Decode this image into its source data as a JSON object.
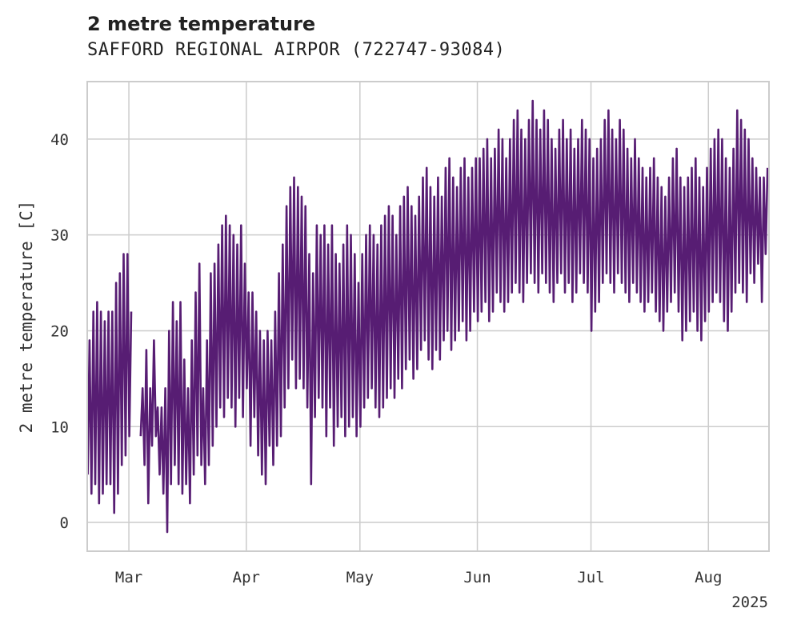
{
  "chart": {
    "title": "2 metre temperature",
    "subtitle": "SAFFORD REGIONAL AIRPOR (722747-93084)",
    "ylabel": "2 metre temperature [C]",
    "year_label": "2025"
  },
  "chart_data": {
    "type": "line",
    "title": "2 metre temperature",
    "subtitle": "SAFFORD REGIONAL AIRPOR (722747-93084)",
    "xlabel": "",
    "ylabel": "2 metre temperature [C]",
    "x_range": [
      "2025-02-18",
      "2025-08-16"
    ],
    "ylim": [
      -3,
      46
    ],
    "y_ticks": [
      0,
      10,
      20,
      30,
      40
    ],
    "x_ticks": [
      {
        "date": "2025-03-01",
        "label": "Mar"
      },
      {
        "date": "2025-04-01",
        "label": "Apr"
      },
      {
        "date": "2025-05-01",
        "label": "May"
      },
      {
        "date": "2025-06-01",
        "label": "Jun"
      },
      {
        "date": "2025-07-01",
        "label": "Jul"
      },
      {
        "date": "2025-08-01",
        "label": "Aug"
      }
    ],
    "grid": true,
    "series": [
      {
        "color": "#571d73",
        "daily_min_max": [
          [
            "2025-02-18",
            5,
            19
          ],
          [
            "2025-02-19",
            3,
            22
          ],
          [
            "2025-02-20",
            4,
            23
          ],
          [
            "2025-02-21",
            2,
            22
          ],
          [
            "2025-02-22",
            3,
            21
          ],
          [
            "2025-02-23",
            4,
            22
          ],
          [
            "2025-02-24",
            4,
            22
          ],
          [
            "2025-02-25",
            1,
            25
          ],
          [
            "2025-02-26",
            3,
            26
          ],
          [
            "2025-02-27",
            6,
            28
          ],
          [
            "2025-02-28",
            7,
            28
          ],
          [
            "2025-03-01",
            9,
            22
          ],
          [
            "2025-03-04",
            9,
            14
          ],
          [
            "2025-03-05",
            6,
            18
          ],
          [
            "2025-03-06",
            2,
            14
          ],
          [
            "2025-03-07",
            8,
            19
          ],
          [
            "2025-03-08",
            9,
            12
          ],
          [
            "2025-03-09",
            5,
            12
          ],
          [
            "2025-03-10",
            3,
            14
          ],
          [
            "2025-03-11",
            -1,
            20
          ],
          [
            "2025-03-12",
            4,
            23
          ],
          [
            "2025-03-13",
            6,
            21
          ],
          [
            "2025-03-14",
            4,
            23
          ],
          [
            "2025-03-15",
            3,
            17
          ],
          [
            "2025-03-16",
            4,
            14
          ],
          [
            "2025-03-17",
            2,
            19
          ],
          [
            "2025-03-18",
            5,
            24
          ],
          [
            "2025-03-19",
            7,
            27
          ],
          [
            "2025-03-20",
            6,
            14
          ],
          [
            "2025-03-21",
            4,
            19
          ],
          [
            "2025-03-22",
            6,
            26
          ],
          [
            "2025-03-23",
            8,
            27
          ],
          [
            "2025-03-24",
            10,
            29
          ],
          [
            "2025-03-25",
            12,
            31
          ],
          [
            "2025-03-26",
            11,
            32
          ],
          [
            "2025-03-27",
            13,
            31
          ],
          [
            "2025-03-28",
            12,
            30
          ],
          [
            "2025-03-29",
            10,
            29
          ],
          [
            "2025-03-30",
            13,
            31
          ],
          [
            "2025-03-31",
            11,
            27
          ],
          [
            "2025-04-01",
            14,
            24
          ],
          [
            "2025-04-02",
            8,
            24
          ],
          [
            "2025-04-03",
            11,
            22
          ],
          [
            "2025-04-04",
            7,
            20
          ],
          [
            "2025-04-05",
            5,
            19
          ],
          [
            "2025-04-06",
            4,
            20
          ],
          [
            "2025-04-07",
            8,
            19
          ],
          [
            "2025-04-08",
            6,
            22
          ],
          [
            "2025-04-09",
            8,
            26
          ],
          [
            "2025-04-10",
            9,
            29
          ],
          [
            "2025-04-11",
            12,
            33
          ],
          [
            "2025-04-12",
            14,
            35
          ],
          [
            "2025-04-13",
            17,
            36
          ],
          [
            "2025-04-14",
            14,
            35
          ],
          [
            "2025-04-15",
            15,
            34
          ],
          [
            "2025-04-16",
            14,
            33
          ],
          [
            "2025-04-17",
            12,
            28
          ],
          [
            "2025-04-18",
            4,
            26
          ],
          [
            "2025-04-19",
            11,
            31
          ],
          [
            "2025-04-20",
            13,
            30
          ],
          [
            "2025-04-21",
            12,
            31
          ],
          [
            "2025-04-22",
            9,
            29
          ],
          [
            "2025-04-23",
            12,
            31
          ],
          [
            "2025-04-24",
            8,
            28
          ],
          [
            "2025-04-25",
            10,
            27
          ],
          [
            "2025-04-26",
            11,
            29
          ],
          [
            "2025-04-27",
            9,
            31
          ],
          [
            "2025-04-28",
            10,
            30
          ],
          [
            "2025-04-29",
            11,
            28
          ],
          [
            "2025-04-30",
            9,
            25
          ],
          [
            "2025-05-01",
            10,
            28
          ],
          [
            "2025-05-02",
            12,
            30
          ],
          [
            "2025-05-03",
            13,
            31
          ],
          [
            "2025-05-04",
            14,
            30
          ],
          [
            "2025-05-05",
            12,
            29
          ],
          [
            "2025-05-06",
            11,
            31
          ],
          [
            "2025-05-07",
            12,
            32
          ],
          [
            "2025-05-08",
            13,
            33
          ],
          [
            "2025-05-09",
            14,
            32
          ],
          [
            "2025-05-10",
            13,
            30
          ],
          [
            "2025-05-11",
            15,
            33
          ],
          [
            "2025-05-12",
            14,
            34
          ],
          [
            "2025-05-13",
            16,
            35
          ],
          [
            "2025-05-14",
            17,
            33
          ],
          [
            "2025-05-15",
            15,
            32
          ],
          [
            "2025-05-16",
            16,
            34
          ],
          [
            "2025-05-17",
            18,
            36
          ],
          [
            "2025-05-18",
            19,
            37
          ],
          [
            "2025-05-19",
            17,
            35
          ],
          [
            "2025-05-20",
            16,
            34
          ],
          [
            "2025-05-21",
            18,
            36
          ],
          [
            "2025-05-22",
            17,
            34
          ],
          [
            "2025-05-23",
            19,
            37
          ],
          [
            "2025-05-24",
            20,
            38
          ],
          [
            "2025-05-25",
            18,
            36
          ],
          [
            "2025-05-26",
            19,
            35
          ],
          [
            "2025-05-27",
            20,
            37
          ],
          [
            "2025-05-28",
            21,
            38
          ],
          [
            "2025-05-29",
            19,
            36
          ],
          [
            "2025-05-30",
            20,
            37
          ],
          [
            "2025-05-31",
            22,
            38
          ],
          [
            "2025-06-01",
            21,
            38
          ],
          [
            "2025-06-02",
            22,
            39
          ],
          [
            "2025-06-03",
            23,
            40
          ],
          [
            "2025-06-04",
            21,
            38
          ],
          [
            "2025-06-05",
            22,
            39
          ],
          [
            "2025-06-06",
            24,
            41
          ],
          [
            "2025-06-07",
            23,
            40
          ],
          [
            "2025-06-08",
            22,
            38
          ],
          [
            "2025-06-09",
            23,
            40
          ],
          [
            "2025-06-10",
            24,
            42
          ],
          [
            "2025-06-11",
            25,
            43
          ],
          [
            "2025-06-12",
            24,
            41
          ],
          [
            "2025-06-13",
            23,
            40
          ],
          [
            "2025-06-14",
            25,
            42
          ],
          [
            "2025-06-15",
            26,
            44
          ],
          [
            "2025-06-16",
            25,
            42
          ],
          [
            "2025-06-17",
            24,
            41
          ],
          [
            "2025-06-18",
            26,
            43
          ],
          [
            "2025-06-19",
            25,
            42
          ],
          [
            "2025-06-20",
            24,
            40
          ],
          [
            "2025-06-21",
            23,
            39
          ],
          [
            "2025-06-22",
            25,
            41
          ],
          [
            "2025-06-23",
            26,
            42
          ],
          [
            "2025-06-24",
            24,
            40
          ],
          [
            "2025-06-25",
            25,
            41
          ],
          [
            "2025-06-26",
            23,
            39
          ],
          [
            "2025-06-27",
            24,
            40
          ],
          [
            "2025-06-28",
            26,
            42
          ],
          [
            "2025-06-29",
            25,
            41
          ],
          [
            "2025-06-30",
            24,
            40
          ],
          [
            "2025-07-01",
            20,
            38
          ],
          [
            "2025-07-02",
            22,
            39
          ],
          [
            "2025-07-03",
            23,
            40
          ],
          [
            "2025-07-04",
            25,
            42
          ],
          [
            "2025-07-05",
            26,
            43
          ],
          [
            "2025-07-06",
            25,
            41
          ],
          [
            "2025-07-07",
            24,
            40
          ],
          [
            "2025-07-08",
            26,
            42
          ],
          [
            "2025-07-09",
            25,
            41
          ],
          [
            "2025-07-10",
            24,
            39
          ],
          [
            "2025-07-11",
            23,
            38
          ],
          [
            "2025-07-12",
            25,
            40
          ],
          [
            "2025-07-13",
            24,
            38
          ],
          [
            "2025-07-14",
            23,
            37
          ],
          [
            "2025-07-15",
            22,
            36
          ],
          [
            "2025-07-16",
            23,
            37
          ],
          [
            "2025-07-17",
            24,
            38
          ],
          [
            "2025-07-18",
            22,
            36
          ],
          [
            "2025-07-19",
            21,
            35
          ],
          [
            "2025-07-20",
            20,
            34
          ],
          [
            "2025-07-21",
            22,
            36
          ],
          [
            "2025-07-22",
            23,
            38
          ],
          [
            "2025-07-23",
            24,
            39
          ],
          [
            "2025-07-24",
            22,
            36
          ],
          [
            "2025-07-25",
            19,
            35
          ],
          [
            "2025-07-26",
            20,
            36
          ],
          [
            "2025-07-27",
            21,
            37
          ],
          [
            "2025-07-28",
            22,
            38
          ],
          [
            "2025-07-29",
            20,
            36
          ],
          [
            "2025-07-30",
            19,
            35
          ],
          [
            "2025-07-31",
            21,
            37
          ],
          [
            "2025-08-01",
            22,
            39
          ],
          [
            "2025-08-02",
            23,
            40
          ],
          [
            "2025-08-03",
            24,
            41
          ],
          [
            "2025-08-04",
            23,
            40
          ],
          [
            "2025-08-05",
            21,
            38
          ],
          [
            "2025-08-06",
            20,
            37
          ],
          [
            "2025-08-07",
            22,
            39
          ],
          [
            "2025-08-08",
            24,
            43
          ],
          [
            "2025-08-09",
            25,
            42
          ],
          [
            "2025-08-10",
            24,
            41
          ],
          [
            "2025-08-11",
            23,
            40
          ],
          [
            "2025-08-12",
            26,
            38
          ],
          [
            "2025-08-13",
            25,
            37
          ],
          [
            "2025-08-14",
            27,
            36
          ],
          [
            "2025-08-15",
            23,
            36
          ],
          [
            "2025-08-16",
            28,
            37
          ]
        ]
      }
    ]
  }
}
